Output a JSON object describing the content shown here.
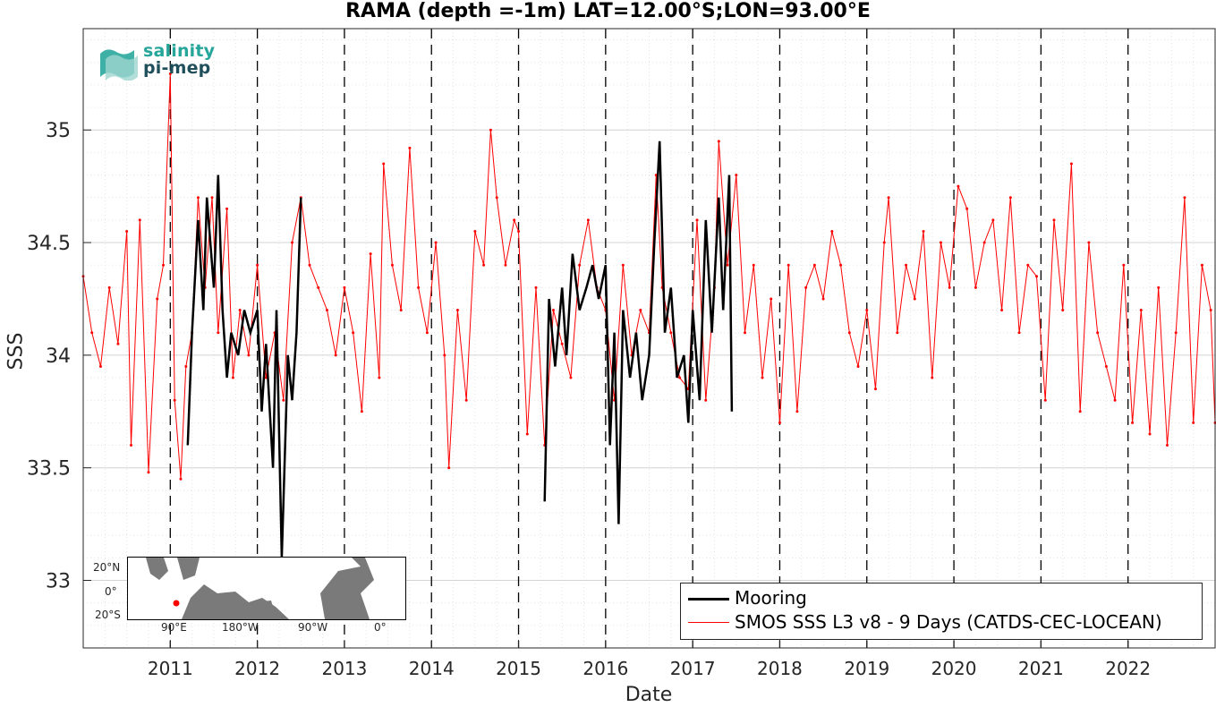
{
  "title": "RAMA (depth =-1m) LAT=12.00°S;LON=93.00°E",
  "xlabel": "Date",
  "ylabel": "SSS",
  "logo": {
    "line1": "salinity",
    "line2": "pi-mep"
  },
  "legend": {
    "mooring": "Mooring",
    "smos": "SMOS SSS L3 v8 - 9 Days (CATDS-CEC-LOCEAN)"
  },
  "inset": {
    "lat_labels": [
      "20°N",
      "0°",
      "20°S"
    ],
    "lon_labels": [
      "90°E",
      "180°W",
      "90°W",
      "0°"
    ]
  },
  "colors": {
    "mooring": "#000000",
    "smos": "#ff0000",
    "grid": "#d9d9d9",
    "inset_land": "#7a7a7a",
    "inset_ocean": "#ffffff",
    "station": "#ff0000"
  },
  "chart_data": {
    "type": "line",
    "title": "RAMA (depth =-1m) LAT=12.00°S;LON=93.00°E",
    "xlabel": "Date",
    "ylabel": "SSS",
    "xlim": [
      2010.0,
      2023.0
    ],
    "ylim": [
      32.7,
      35.45
    ],
    "yticks": [
      33,
      33.5,
      34,
      34.5,
      35
    ],
    "xticks": [
      2011,
      2012,
      2013,
      2014,
      2015,
      2016,
      2017,
      2018,
      2019,
      2020,
      2021,
      2022
    ],
    "grid": true,
    "legend_position": "bottom-right",
    "year_markers": [
      2011,
      2012,
      2013,
      2014,
      2015,
      2016,
      2017,
      2018,
      2019,
      2020,
      2021,
      2022
    ],
    "series": [
      {
        "name": "SMOS SSS L3 v8 - 9 Days (CATDS-CEC-LOCEAN)",
        "x": [
          2010.0,
          2010.1,
          2010.2,
          2010.3,
          2010.4,
          2010.5,
          2010.55,
          2010.65,
          2010.75,
          2010.85,
          2010.92,
          2011.0,
          2011.05,
          2011.12,
          2011.18,
          2011.25,
          2011.32,
          2011.4,
          2011.48,
          2011.55,
          2011.65,
          2011.72,
          2011.8,
          2011.9,
          2012.0,
          2012.1,
          2012.2,
          2012.3,
          2012.4,
          2012.5,
          2012.6,
          2012.7,
          2012.8,
          2012.9,
          2013.0,
          2013.1,
          2013.2,
          2013.3,
          2013.4,
          2013.45,
          2013.55,
          2013.65,
          2013.75,
          2013.85,
          2013.95,
          2014.05,
          2014.15,
          2014.2,
          2014.3,
          2014.4,
          2014.5,
          2014.6,
          2014.68,
          2014.75,
          2014.85,
          2014.95,
          2015.0,
          2015.1,
          2015.2,
          2015.3,
          2015.4,
          2015.5,
          2015.6,
          2015.7,
          2015.8,
          2015.9,
          2016.0,
          2016.1,
          2016.2,
          2016.3,
          2016.4,
          2016.5,
          2016.58,
          2016.65,
          2016.75,
          2016.85,
          2016.95,
          2017.05,
          2017.15,
          2017.25,
          2017.3,
          2017.4,
          2017.5,
          2017.6,
          2017.7,
          2017.8,
          2017.9,
          2018.0,
          2018.1,
          2018.2,
          2018.3,
          2018.4,
          2018.5,
          2018.6,
          2018.7,
          2018.8,
          2018.9,
          2019.0,
          2019.1,
          2019.2,
          2019.25,
          2019.35,
          2019.45,
          2019.55,
          2019.65,
          2019.75,
          2019.85,
          2019.95,
          2020.05,
          2020.15,
          2020.25,
          2020.35,
          2020.45,
          2020.55,
          2020.65,
          2020.75,
          2020.85,
          2020.95,
          2021.05,
          2021.15,
          2021.25,
          2021.35,
          2021.45,
          2021.55,
          2021.65,
          2021.75,
          2021.85,
          2021.95,
          2022.05,
          2022.15,
          2022.25,
          2022.35,
          2022.45,
          2022.55,
          2022.65,
          2022.75,
          2022.85,
          2022.95,
          2023.0
        ],
        "y": [
          34.35,
          34.1,
          33.95,
          34.3,
          34.05,
          34.55,
          33.6,
          34.6,
          33.48,
          34.25,
          34.4,
          35.25,
          33.8,
          33.45,
          33.95,
          34.1,
          34.7,
          34.3,
          34.7,
          34.1,
          34.65,
          33.9,
          34.2,
          34.0,
          34.4,
          33.9,
          34.1,
          33.8,
          34.5,
          34.7,
          34.4,
          34.3,
          34.2,
          34.0,
          34.3,
          34.1,
          33.75,
          34.45,
          33.9,
          34.85,
          34.4,
          34.2,
          34.92,
          34.3,
          34.1,
          34.5,
          34.0,
          33.5,
          34.2,
          33.8,
          34.55,
          34.4,
          35.0,
          34.7,
          34.4,
          34.6,
          34.55,
          33.65,
          34.3,
          33.6,
          34.2,
          34.05,
          33.9,
          34.4,
          34.6,
          34.3,
          34.2,
          33.8,
          34.4,
          34.0,
          34.2,
          34.1,
          34.8,
          34.3,
          34.1,
          33.9,
          33.85,
          34.6,
          33.8,
          34.3,
          34.95,
          34.4,
          34.8,
          34.1,
          34.4,
          33.9,
          34.25,
          33.7,
          34.4,
          33.75,
          34.3,
          34.4,
          34.25,
          34.55,
          34.4,
          34.1,
          33.95,
          34.2,
          33.85,
          34.5,
          34.7,
          34.1,
          34.4,
          34.25,
          34.55,
          33.9,
          34.5,
          34.3,
          34.75,
          34.65,
          34.3,
          34.5,
          34.6,
          34.2,
          34.7,
          34.1,
          34.4,
          34.35,
          33.8,
          34.6,
          34.2,
          34.85,
          33.75,
          34.5,
          34.1,
          33.95,
          33.8,
          34.4,
          33.7,
          34.2,
          33.65,
          34.3,
          33.6,
          34.1,
          34.7,
          33.7,
          34.4,
          34.2,
          33.7
        ]
      },
      {
        "name": "Mooring",
        "x": [
          2011.2,
          2011.25,
          2011.32,
          2011.38,
          2011.42,
          2011.5,
          2011.55,
          2011.6,
          2011.65,
          2011.7,
          2011.78,
          2011.85,
          2011.92,
          2012.0,
          2012.05,
          2012.1,
          2012.18,
          2012.22,
          2012.28,
          2012.35,
          2012.4,
          2012.45,
          2012.5,
          2015.3,
          2015.35,
          2015.42,
          2015.5,
          2015.55,
          2015.62,
          2015.7,
          2015.78,
          2015.85,
          2015.92,
          2016.0,
          2016.05,
          2016.1,
          2016.15,
          2016.2,
          2016.28,
          2016.35,
          2016.42,
          2016.5,
          2016.56,
          2016.62,
          2016.68,
          2016.75,
          2016.82,
          2016.9,
          2016.95,
          2017.0,
          2017.08,
          2017.15,
          2017.22,
          2017.3,
          2017.35,
          2017.42,
          2017.45
        ],
        "y": [
          33.6,
          34.1,
          34.6,
          34.2,
          34.7,
          34.3,
          34.8,
          34.2,
          33.9,
          34.1,
          34.0,
          34.2,
          34.1,
          34.2,
          33.75,
          34.05,
          33.5,
          34.2,
          33.1,
          34.0,
          33.8,
          34.1,
          34.7,
          33.35,
          34.25,
          33.95,
          34.3,
          34.0,
          34.45,
          34.2,
          34.3,
          34.4,
          34.25,
          34.4,
          33.6,
          34.1,
          33.25,
          34.2,
          33.9,
          34.1,
          33.8,
          34.0,
          34.5,
          34.95,
          34.1,
          34.3,
          33.9,
          34.0,
          33.7,
          34.2,
          33.8,
          34.6,
          34.1,
          34.7,
          34.2,
          34.8,
          33.75
        ]
      }
    ]
  }
}
